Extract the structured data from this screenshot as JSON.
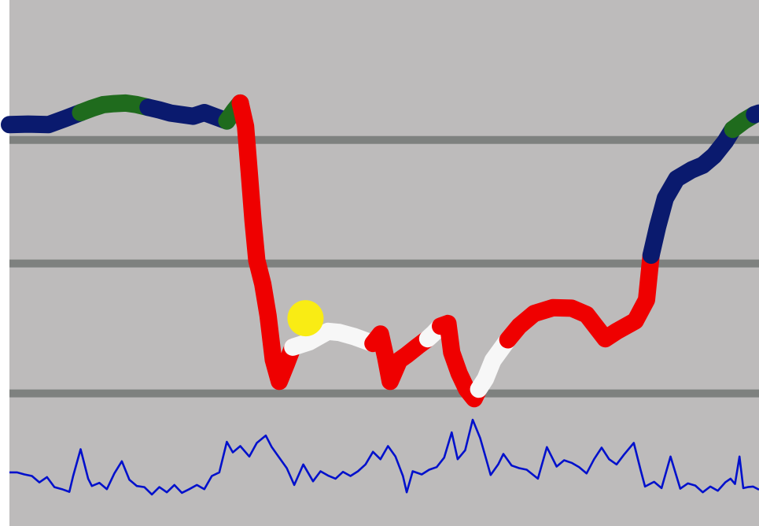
{
  "chart_data": {
    "type": "line",
    "x_range": [
      0,
      100
    ],
    "y_range": [
      0,
      100
    ],
    "grid": false,
    "legend": "none",
    "background_color": "#bdbbbb",
    "reference_lines": [
      {
        "y": 73.4,
        "color": "#7e817f"
      },
      {
        "y": 49.9,
        "color": "#7e817f"
      },
      {
        "y": 25.2,
        "color": "#7e817f"
      }
    ],
    "series": [
      {
        "color_coded_trace": true,
        "segments": [
          {
            "color": "#0a1a6e",
            "points": [
              [
                0,
                76.3
              ],
              [
                2.5,
                76.4
              ],
              [
                5.2,
                76.3
              ],
              [
                7.5,
                77.5
              ],
              [
                9.5,
                78.6
              ]
            ]
          },
          {
            "color": "#1f6b1d",
            "points": [
              [
                9.5,
                78.6
              ],
              [
                11,
                79.4
              ],
              [
                12.5,
                80.1
              ],
              [
                14,
                80.3
              ],
              [
                15.5,
                80.4
              ],
              [
                17,
                80.1
              ],
              [
                18.5,
                79.6
              ]
            ]
          },
          {
            "color": "#0a1a6e",
            "points": [
              [
                18.5,
                79.6
              ],
              [
                20,
                79.1
              ],
              [
                21.5,
                78.5
              ],
              [
                23,
                78.2
              ],
              [
                24.5,
                77.9
              ],
              [
                26,
                78.6
              ],
              [
                27.5,
                77.8
              ],
              [
                29,
                77.0
              ]
            ]
          },
          {
            "color": "#1f6b1d",
            "points": [
              [
                29,
                77.0
              ],
              [
                30,
                79.0
              ],
              [
                30.8,
                80.4
              ]
            ]
          },
          {
            "color": "#ef0000",
            "points": [
              [
                30.8,
                80.4
              ],
              [
                31.5,
                76.0
              ],
              [
                32,
                67.0
              ],
              [
                32.5,
                58.0
              ],
              [
                33,
                50.5
              ],
              [
                33.8,
                46.0
              ],
              [
                34.5,
                40.0
              ],
              [
                35.2,
                31.6
              ],
              [
                36.0,
                27.5
              ],
              [
                37.0,
                31.0
              ],
              [
                37.8,
                34.0
              ]
            ]
          },
          {
            "color": "#f7f7f7",
            "points": [
              [
                37.8,
                34.0
              ],
              [
                40.0,
                35.0
              ],
              [
                42.5,
                37.0
              ],
              [
                44.0,
                36.8
              ],
              [
                46.0,
                36.0
              ],
              [
                48.5,
                34.7
              ]
            ]
          },
          {
            "color": "#ef0000",
            "points": [
              [
                48.5,
                34.7
              ],
              [
                49.5,
                36.5
              ],
              [
                50.2,
                32.0
              ],
              [
                50.8,
                27.5
              ],
              [
                52.0,
                31.5
              ],
              [
                53.0,
                32.5
              ],
              [
                54.5,
                34.2
              ],
              [
                55.8,
                35.6
              ]
            ]
          },
          {
            "color": "#f7f7f7",
            "points": [
              [
                55.8,
                35.6
              ],
              [
                56.5,
                36.5
              ],
              [
                57.5,
                38.0
              ]
            ]
          },
          {
            "color": "#ef0000",
            "points": [
              [
                57.5,
                38.0
              ],
              [
                58.5,
                38.5
              ],
              [
                59.0,
                33.0
              ],
              [
                60.0,
                29.0
              ],
              [
                61.0,
                26.0
              ],
              [
                62.0,
                24.2
              ],
              [
                62.6,
                26.0
              ]
            ]
          },
          {
            "color": "#f7f7f7",
            "points": [
              [
                62.6,
                26.0
              ],
              [
                63.5,
                28.0
              ],
              [
                64.5,
                31.5
              ],
              [
                66.5,
                35.4
              ]
            ]
          },
          {
            "color": "#ef0000",
            "points": [
              [
                66.5,
                35.4
              ],
              [
                68.0,
                38.0
              ],
              [
                70.0,
                40.4
              ],
              [
                72.5,
                41.5
              ],
              [
                75.0,
                41.4
              ],
              [
                77.0,
                40.2
              ],
              [
                79.5,
                35.6
              ],
              [
                81.0,
                37.0
              ],
              [
                83.5,
                39.0
              ],
              [
                85.0,
                43.0
              ],
              [
                85.6,
                51.5
              ]
            ]
          },
          {
            "color": "#0a1a6e",
            "points": [
              [
                85.6,
                51.5
              ],
              [
                86.5,
                57.0
              ],
              [
                87.5,
                62.3
              ],
              [
                89.0,
                66.0
              ],
              [
                91.0,
                67.7
              ],
              [
                92.5,
                68.6
              ],
              [
                94.0,
                70.4
              ],
              [
                95.5,
                73.1
              ],
              [
                96.5,
                75.4
              ]
            ]
          },
          {
            "color": "#1f6b1d",
            "points": [
              [
                96.5,
                75.4
              ],
              [
                98.0,
                77.0
              ],
              [
                99.4,
                78.2
              ]
            ]
          },
          {
            "color": "#0a1a6e",
            "points": [
              [
                99.4,
                78.2
              ],
              [
                100,
                78.5
              ]
            ]
          }
        ]
      },
      {
        "color": "#0010cc",
        "points": [
          [
            0,
            10.2
          ],
          [
            1,
            10.2
          ],
          [
            2,
            9.8
          ],
          [
            3,
            9.5
          ],
          [
            4,
            8.3
          ],
          [
            5,
            9.3
          ],
          [
            6,
            7.4
          ],
          [
            7,
            7.0
          ],
          [
            8,
            6.5
          ],
          [
            8.5,
            9.5
          ],
          [
            9.5,
            14.6
          ],
          [
            10.5,
            9.0
          ],
          [
            11,
            7.6
          ],
          [
            12,
            8.2
          ],
          [
            13,
            7.0
          ],
          [
            14,
            10.0
          ],
          [
            15.0,
            12.3
          ],
          [
            16,
            8.8
          ],
          [
            17,
            7.6
          ],
          [
            18,
            7.4
          ],
          [
            19,
            6.0
          ],
          [
            20,
            7.4
          ],
          [
            21,
            6.4
          ],
          [
            22,
            7.8
          ],
          [
            23,
            6.3
          ],
          [
            24,
            7.0
          ],
          [
            25,
            7.8
          ],
          [
            26,
            7.0
          ],
          [
            27,
            9.5
          ],
          [
            28,
            10.2
          ],
          [
            29.0,
            16.0
          ],
          [
            29.8,
            14.0
          ],
          [
            30.8,
            15.2
          ],
          [
            32.0,
            13.2
          ],
          [
            33,
            15.8
          ],
          [
            34.2,
            17.2
          ],
          [
            35,
            15.0
          ],
          [
            36.0,
            13.0
          ],
          [
            37,
            11.0
          ],
          [
            38,
            7.8
          ],
          [
            39.2,
            11.7
          ],
          [
            40.5,
            8.5
          ],
          [
            41.5,
            10.4
          ],
          [
            42.5,
            9.6
          ],
          [
            43.5,
            9.0
          ],
          [
            44.5,
            10.3
          ],
          [
            45.5,
            9.5
          ],
          [
            46.5,
            10.4
          ],
          [
            47.5,
            11.7
          ],
          [
            48.5,
            14.1
          ],
          [
            49.5,
            12.7
          ],
          [
            50.5,
            15.2
          ],
          [
            51.5,
            13.2
          ],
          [
            52.5,
            9.5
          ],
          [
            53.0,
            6.4
          ],
          [
            53.8,
            10.4
          ],
          [
            55,
            9.8
          ],
          [
            56,
            10.7
          ],
          [
            57,
            11.2
          ],
          [
            58,
            13.0
          ],
          [
            59.0,
            17.8
          ],
          [
            59.8,
            12.7
          ],
          [
            60.8,
            14.4
          ],
          [
            61.8,
            20.2
          ],
          [
            62.8,
            16.7
          ],
          [
            63.5,
            13.2
          ],
          [
            64.2,
            9.7
          ],
          [
            65.2,
            11.7
          ],
          [
            65.9,
            13.7
          ],
          [
            67,
            11.5
          ],
          [
            68,
            11.0
          ],
          [
            69,
            10.7
          ],
          [
            70.5,
            9.0
          ],
          [
            71.7,
            15.0
          ],
          [
            73,
            11.3
          ],
          [
            74,
            12.5
          ],
          [
            75,
            12.0
          ],
          [
            76,
            11.2
          ],
          [
            77,
            10.0
          ],
          [
            78,
            12.7
          ],
          [
            79,
            14.9
          ],
          [
            80,
            12.7
          ],
          [
            81,
            11.7
          ],
          [
            82,
            13.6
          ],
          [
            83.3,
            15.8
          ],
          [
            84.2,
            10.7
          ],
          [
            84.8,
            7.5
          ],
          [
            86,
            8.4
          ],
          [
            87,
            7.2
          ],
          [
            88.2,
            13.2
          ],
          [
            89.5,
            7.1
          ],
          [
            90.5,
            8.1
          ],
          [
            91.5,
            7.7
          ],
          [
            92.5,
            6.4
          ],
          [
            93.5,
            7.5
          ],
          [
            94.5,
            6.7
          ],
          [
            95.5,
            8.3
          ],
          [
            96.2,
            9.0
          ],
          [
            96.8,
            8.0
          ],
          [
            97.4,
            13.2
          ],
          [
            97.9,
            7.2
          ],
          [
            98.5,
            7.4
          ],
          [
            99.2,
            7.5
          ],
          [
            100,
            6.9
          ]
        ]
      }
    ],
    "markers": [
      {
        "x": 39.5,
        "y": 39.5,
        "color": "#f9ec14"
      }
    ]
  }
}
